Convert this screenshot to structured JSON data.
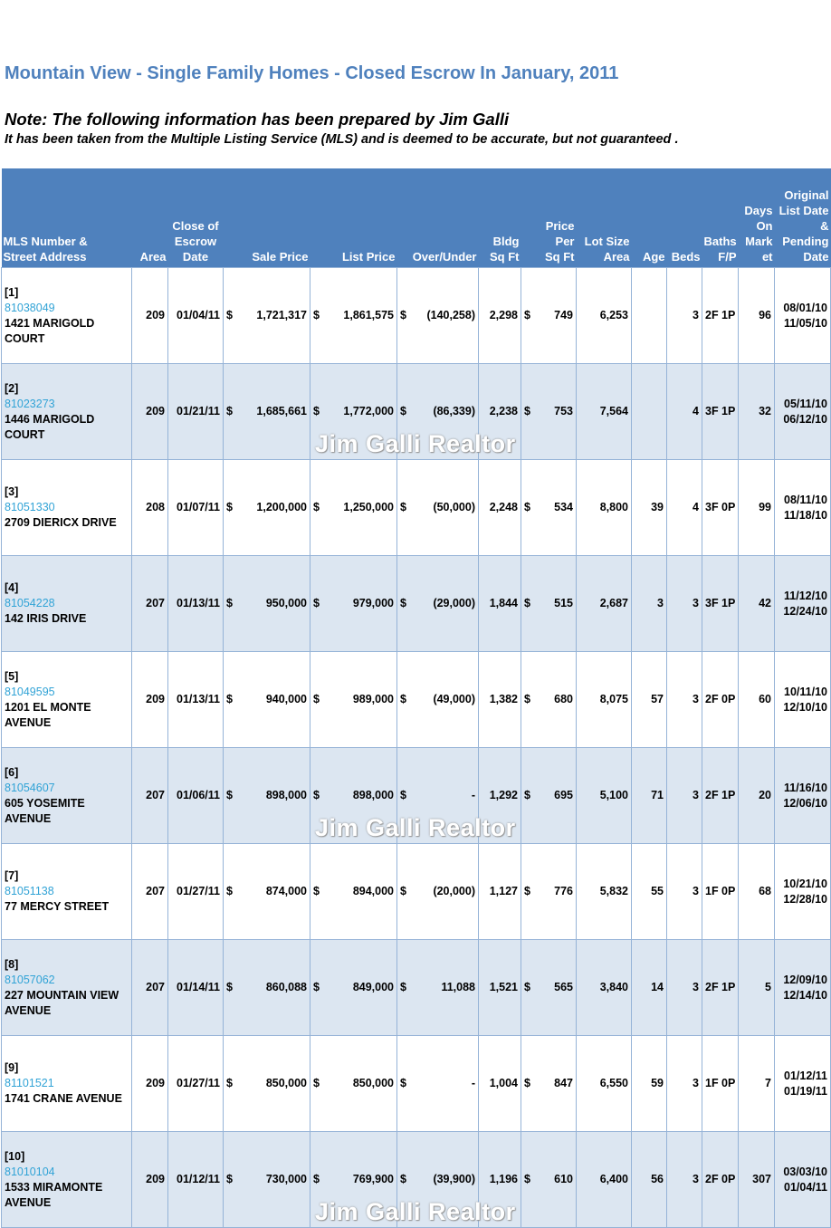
{
  "title": "Mountain View - Single Family Homes - Closed Escrow In January, 2011",
  "note": "Note:  The following information has been prepared by Jim Galli",
  "disclaimer": "It has been taken from the Multiple Listing Service (MLS) and is deemed to be accurate, but not guaranteed",
  "disclaimer_end": ".",
  "watermark": "Jim Galli Realtor",
  "currency": "$",
  "headers": {
    "mls_1": "MLS Number &",
    "mls_2": "Street Address",
    "area": "Area",
    "close_1": "Close of",
    "close_2": "Escrow",
    "close_3": "Date",
    "sale": "Sale Price",
    "list": "List Price",
    "over": "Over/Under",
    "bldg_1": "Bldg",
    "bldg_2": "Sq Ft",
    "ppsf_1": "Price",
    "ppsf_2": "Per",
    "ppsf_3": "Sq Ft",
    "lot_1": "Lot Size",
    "lot_2": "Area",
    "age": "Age",
    "beds": "Beds",
    "baths_1": "Baths",
    "baths_2": "F/P",
    "dom_1": "Days",
    "dom_2": "On",
    "dom_3": "Mark",
    "dom_4": "et",
    "orig_1": "Original",
    "orig_2": "List Date",
    "orig_3": "&",
    "orig_4": "Pending",
    "orig_5": "Date"
  },
  "rows": [
    {
      "idx": "[1]",
      "mls": "81038049",
      "addr": "1421 MARIGOLD COURT",
      "area": "209",
      "close": "01/04/11",
      "sale": "1,721,317",
      "list": "1,861,575",
      "over": "(140,258)",
      "bldg": "2,298",
      "ppsf": "749",
      "lot": "6,253",
      "age": "",
      "beds": "3",
      "baths": "2F 1P",
      "dom": "96",
      "list_date": "08/01/10",
      "pending_date": "11/05/10"
    },
    {
      "idx": "[2]",
      "mls": "81023273",
      "addr": "1446 MARIGOLD COURT",
      "area": "209",
      "close": "01/21/11",
      "sale": "1,685,661",
      "list": "1,772,000",
      "over": "(86,339)",
      "bldg": "2,238",
      "ppsf": "753",
      "lot": "7,564",
      "age": "",
      "beds": "4",
      "baths": "3F 1P",
      "dom": "32",
      "list_date": "05/11/10",
      "pending_date": "06/12/10"
    },
    {
      "idx": "[3]",
      "mls": "81051330",
      "addr": "2709 DIERICX DRIVE",
      "area": "208",
      "close": "01/07/11",
      "sale": "1,200,000",
      "list": "1,250,000",
      "over": "(50,000)",
      "bldg": "2,248",
      "ppsf": "534",
      "lot": "8,800",
      "age": "39",
      "beds": "4",
      "baths": "3F 0P",
      "dom": "99",
      "list_date": "08/11/10",
      "pending_date": "11/18/10"
    },
    {
      "idx": "[4]",
      "mls": "81054228",
      "addr": "142 IRIS DRIVE",
      "area": "207",
      "close": "01/13/11",
      "sale": "950,000",
      "list": "979,000",
      "over": "(29,000)",
      "bldg": "1,844",
      "ppsf": "515",
      "lot": "2,687",
      "age": "3",
      "beds": "3",
      "baths": "3F 1P",
      "dom": "42",
      "list_date": "11/12/10",
      "pending_date": "12/24/10"
    },
    {
      "idx": "[5]",
      "mls": "81049595",
      "addr": "1201 EL MONTE AVENUE",
      "area": "209",
      "close": "01/13/11",
      "sale": "940,000",
      "list": "989,000",
      "over": "(49,000)",
      "bldg": "1,382",
      "ppsf": "680",
      "lot": "8,075",
      "age": "57",
      "beds": "3",
      "baths": "2F 0P",
      "dom": "60",
      "list_date": "10/11/10",
      "pending_date": "12/10/10"
    },
    {
      "idx": "[6]",
      "mls": "81054607",
      "addr": "605 YOSEMITE AVENUE",
      "area": "207",
      "close": "01/06/11",
      "sale": "898,000",
      "list": "898,000",
      "over": "-",
      "bldg": "1,292",
      "ppsf": "695",
      "lot": "5,100",
      "age": "71",
      "beds": "3",
      "baths": "2F 1P",
      "dom": "20",
      "list_date": "11/16/10",
      "pending_date": "12/06/10"
    },
    {
      "idx": "[7]",
      "mls": "81051138",
      "addr": "77 MERCY STREET",
      "area": "207",
      "close": "01/27/11",
      "sale": "874,000",
      "list": "894,000",
      "over": "(20,000)",
      "bldg": "1,127",
      "ppsf": "776",
      "lot": "5,832",
      "age": "55",
      "beds": "3",
      "baths": "1F 0P",
      "dom": "68",
      "list_date": "10/21/10",
      "pending_date": "12/28/10"
    },
    {
      "idx": "[8]",
      "mls": "81057062",
      "addr": "227 MOUNTAIN VIEW AVENUE",
      "area": "207",
      "close": "01/14/11",
      "sale": "860,088",
      "list": "849,000",
      "over": "11,088",
      "bldg": "1,521",
      "ppsf": "565",
      "lot": "3,840",
      "age": "14",
      "beds": "3",
      "baths": "2F 1P",
      "dom": "5",
      "list_date": "12/09/10",
      "pending_date": "12/14/10"
    },
    {
      "idx": "[9]",
      "mls": "81101521",
      "addr": "1741 CRANE AVENUE",
      "area": "209",
      "close": "01/27/11",
      "sale": "850,000",
      "list": "850,000",
      "over": "-",
      "bldg": "1,004",
      "ppsf": "847",
      "lot": "6,550",
      "age": "59",
      "beds": "3",
      "baths": "1F 0P",
      "dom": "7",
      "list_date": "01/12/11",
      "pending_date": "01/19/11"
    },
    {
      "idx": "[10]",
      "mls": "81010104",
      "addr": "1533 MIRAMONTE AVENUE",
      "area": "209",
      "close": "01/12/11",
      "sale": "730,000",
      "list": "769,900",
      "over": "(39,900)",
      "bldg": "1,196",
      "ppsf": "610",
      "lot": "6,400",
      "age": "56",
      "beds": "3",
      "baths": "2F 0P",
      "dom": "307",
      "list_date": "03/03/10",
      "pending_date": "01/04/11"
    }
  ]
}
